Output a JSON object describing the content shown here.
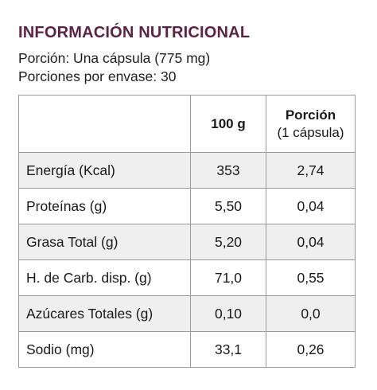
{
  "header": {
    "title": "INFORMACIÓN NUTRICIONAL",
    "serving": "Porción: Una cápsula (775 mg)",
    "servings_per_container": "Porciones por envase: 30"
  },
  "table": {
    "columns": {
      "nutrient": "",
      "per_100g": "100 g",
      "per_serving": "Porción",
      "per_serving_sub": "(1 cápsula)"
    },
    "rows": [
      {
        "label": "Energía (Kcal)",
        "per_100g": "353",
        "per_serving": "2,74"
      },
      {
        "label": "Proteínas (g)",
        "per_100g": "5,50",
        "per_serving": "0,04"
      },
      {
        "label": "Grasa Total (g)",
        "per_100g": "5,20",
        "per_serving": "0,04"
      },
      {
        "label": "H. de Carb. disp. (g)",
        "per_100g": "71,0",
        "per_serving": "0,55"
      },
      {
        "label": "Azúcares Totales (g)",
        "per_100g": "0,10",
        "per_serving": "0,0"
      },
      {
        "label": "Sodio (mg)",
        "per_100g": "33,1",
        "per_serving": "0,26"
      }
    ]
  },
  "colors": {
    "title": "#5b2345",
    "stripe": "#efefef",
    "border": "#9a9a9a"
  }
}
